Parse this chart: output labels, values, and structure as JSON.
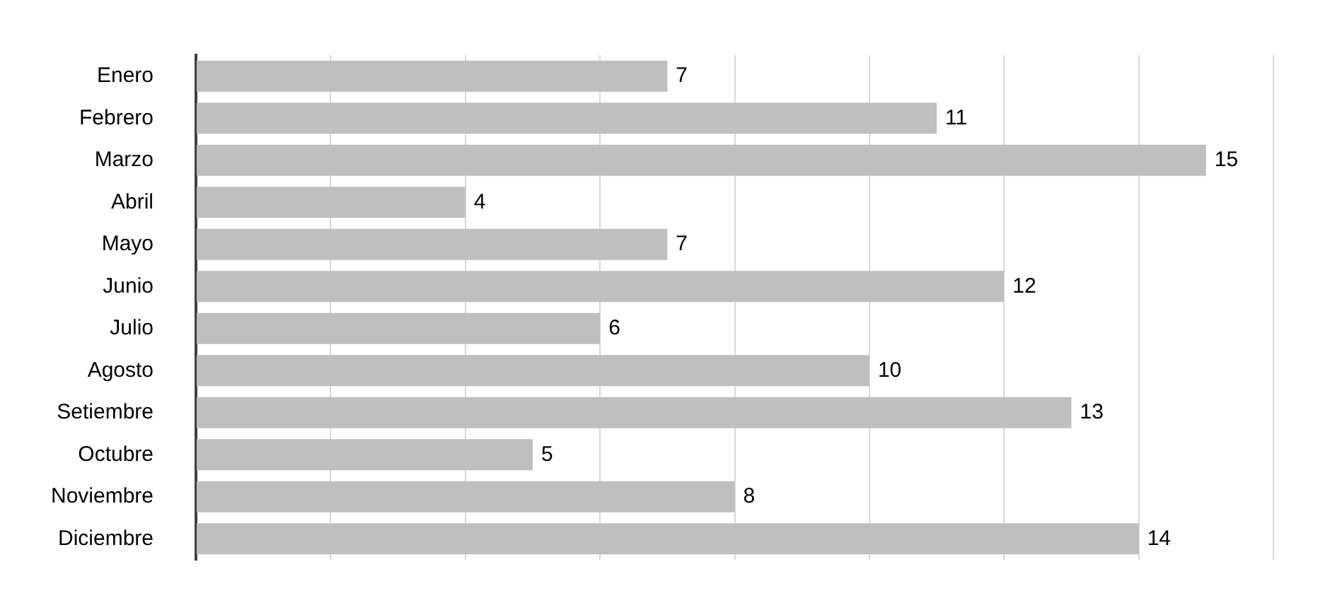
{
  "chart_data": {
    "type": "bar",
    "orientation": "horizontal",
    "categories": [
      "Enero",
      "Febrero",
      "Marzo",
      "Abril",
      "Mayo",
      "Junio",
      "Julio",
      "Agosto",
      "Setiembre",
      "Octubre",
      "Noviembre",
      "Diciembre"
    ],
    "values": [
      7,
      11,
      15,
      4,
      7,
      12,
      6,
      10,
      13,
      5,
      8,
      14
    ],
    "color": "#bfbfbf",
    "xlim": [
      0,
      16
    ],
    "xticks": [
      {
        "value": 0,
        "label": null
      },
      {
        "value": 2,
        "label": null
      },
      {
        "value": 4,
        "label": null
      },
      {
        "value": 6,
        "label": null
      },
      {
        "value": 8,
        "label": null
      },
      {
        "value": 10,
        "label": null
      },
      {
        "value": 12,
        "label": null
      },
      {
        "value": 14,
        "label": null
      },
      {
        "value": 16,
        "label": null
      }
    ],
    "grid": "x",
    "tick_labels": "y",
    "data_labels": true,
    "legend": false
  }
}
